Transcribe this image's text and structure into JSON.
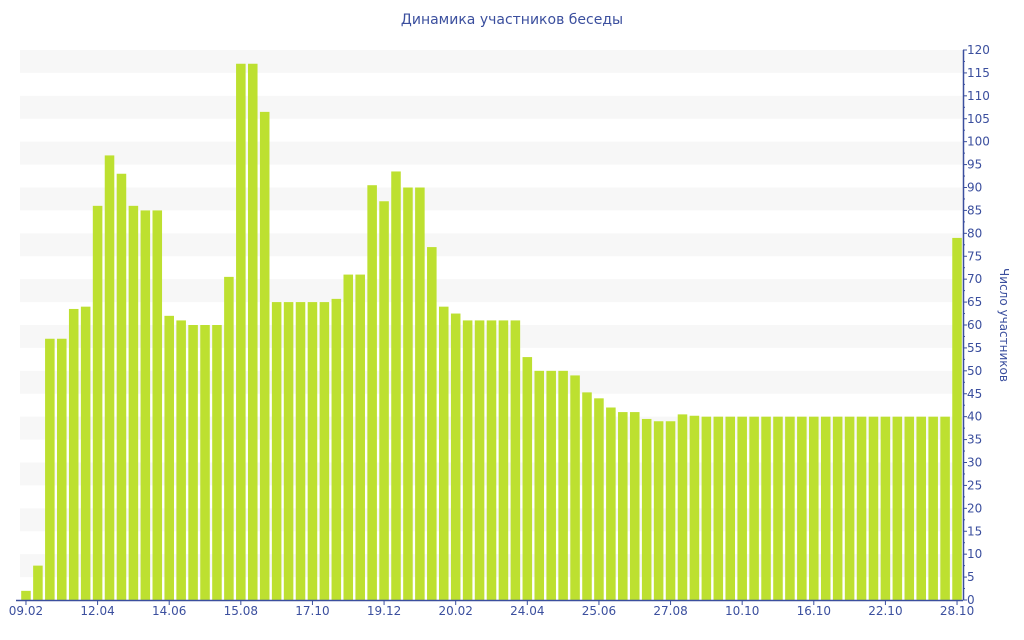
{
  "chart_data": {
    "type": "bar",
    "title": "Динамика участников беседы",
    "xlabel": "",
    "ylabel": "Число участников",
    "ylim": [
      0,
      120
    ],
    "ytick_step": 5,
    "y_axis_side": "right",
    "grid": "alternating horizontal bands",
    "bar_color": "#bde030",
    "axis_color": "#3b4f9e",
    "band_color": "#f7f7f7",
    "values": [
      2,
      7.5,
      57,
      57,
      63.5,
      64,
      86,
      97,
      93,
      86,
      85,
      85,
      62,
      61,
      60,
      60,
      60,
      70.5,
      117,
      117,
      106.5,
      65,
      65,
      65,
      65,
      65,
      65.7,
      71,
      71,
      90.5,
      87,
      93.5,
      90,
      90,
      77,
      64,
      62.5,
      61,
      61,
      61,
      61,
      61,
      53,
      50,
      50,
      50,
      49,
      45.3,
      44,
      42,
      41,
      41,
      39.5,
      39,
      39,
      40.5,
      40.2,
      40,
      40,
      40,
      40,
      40,
      40,
      40,
      40,
      40,
      40,
      40,
      40,
      40,
      40,
      40,
      40,
      40,
      40,
      40,
      40,
      40,
      79
    ],
    "x_tick_labels": [
      {
        "index": 0,
        "label": "09.02"
      },
      {
        "index": 6,
        "label": "12.04"
      },
      {
        "index": 12,
        "label": "14.06"
      },
      {
        "index": 18,
        "label": "15.08"
      },
      {
        "index": 24,
        "label": "17.10"
      },
      {
        "index": 30,
        "label": "19.12"
      },
      {
        "index": 36,
        "label": "20.02"
      },
      {
        "index": 42,
        "label": "24.04"
      },
      {
        "index": 48,
        "label": "25.06"
      },
      {
        "index": 54,
        "label": "27.08"
      },
      {
        "index": 60,
        "label": "10.10"
      },
      {
        "index": 66,
        "label": "16.10"
      },
      {
        "index": 72,
        "label": "22.10"
      },
      {
        "index": 78,
        "label": "28.10"
      }
    ]
  }
}
